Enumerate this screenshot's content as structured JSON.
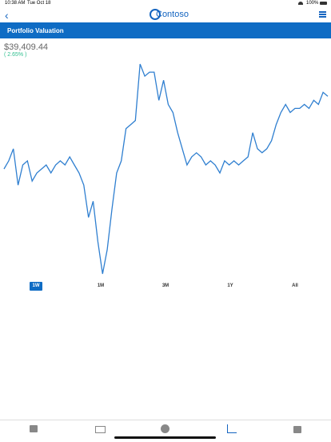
{
  "status_bar": {
    "time": "10:38 AM",
    "date": "Tue Oct 18",
    "battery": "100%"
  },
  "header": {
    "logo": "Contoso"
  },
  "title_bar": {
    "title": "Portfolio Valuation"
  },
  "valuation": {
    "amount": "$39,409.44",
    "change": "( 2.65% )"
  },
  "chart_data": {
    "type": "line",
    "color": "#2f7fd0",
    "values": [
      140,
      150,
      165,
      120,
      145,
      150,
      125,
      135,
      140,
      145,
      135,
      145,
      150,
      145,
      155,
      145,
      135,
      120,
      80,
      100,
      50,
      10,
      40,
      90,
      135,
      150,
      190,
      195,
      200,
      270,
      255,
      260,
      260,
      225,
      250,
      220,
      210,
      185,
      165,
      145,
      155,
      160,
      155,
      145,
      150,
      145,
      135,
      150,
      145,
      150,
      145,
      150,
      155,
      185,
      165,
      160,
      165,
      175,
      195,
      210,
      220,
      210,
      215,
      215,
      220,
      215,
      225,
      220,
      235,
      230
    ]
  },
  "range_buttons": [
    "1W",
    "1M",
    "3M",
    "1Y",
    "All"
  ]
}
